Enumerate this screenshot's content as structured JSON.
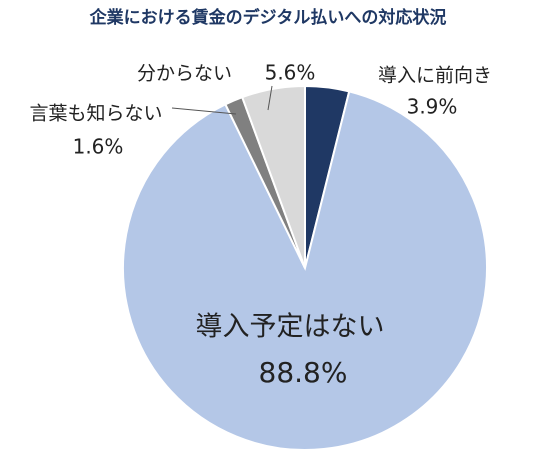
{
  "chart_data": {
    "type": "pie",
    "title": "企業における賃金のデジタル払いへの対応状況",
    "categories": [
      "導入に前向き",
      "導入予定はない",
      "言葉も知らない",
      "分からない"
    ],
    "values": [
      3.9,
      88.8,
      1.6,
      5.6
    ],
    "value_labels": [
      "3.9%",
      "88.8%",
      "1.6%",
      "5.6%"
    ],
    "colors": [
      "#1f3864",
      "#b4c7e7",
      "#808080",
      "#d9d9d9"
    ]
  }
}
